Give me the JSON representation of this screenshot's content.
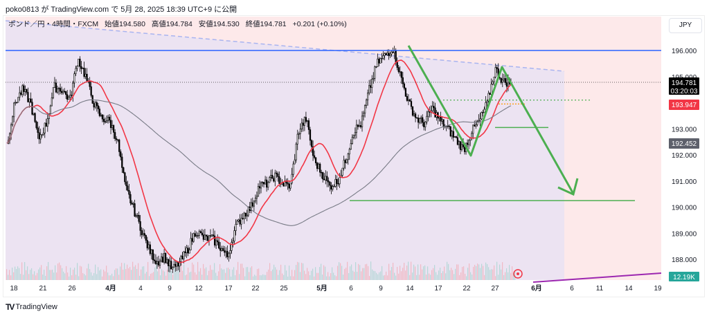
{
  "published": "poko0813 が TradingView.com で 5月 28, 2025 18:39 UTC+9 に公開",
  "legend": {
    "symbol": "ポンド／円・4時間・FXCM",
    "open": "始値194.580",
    "high": "高値194.784",
    "low": "安値194.530",
    "close": "終値194.781",
    "change": "+0.201 (+0.10%)"
  },
  "currency_button": "JPY",
  "brand": "TradingView",
  "price_labels": {
    "last": "194.781",
    "countdown": "03:20:03",
    "ma_fast": "193.947",
    "ma_slow": "192.452",
    "volume": "12.19K"
  },
  "colors": {
    "up": "#ffffff",
    "down": "#000000",
    "ma_fast": "#f23645",
    "ma_slow": "#787b86",
    "horizontal": "#2962ff",
    "drawing": "#4caf50",
    "volume_badge": "#26a69a",
    "trend": "#9c27b0"
  },
  "chart_data": {
    "type": "candlestick",
    "ylim": [
      187.2,
      197.2
    ],
    "y_ticks": [
      "196.000",
      "195.000",
      "193.000",
      "192.000",
      "191.000",
      "190.000",
      "189.000",
      "188.000"
    ],
    "x_ticks": [
      "18",
      "21",
      "26",
      "4月",
      "4",
      "9",
      "12",
      "17",
      "22",
      "25",
      "5月",
      "6",
      "9",
      "14",
      "17",
      "22",
      "27",
      "6月",
      "6",
      "11",
      "14",
      "19"
    ],
    "approx_closes": [
      192.4,
      194.0,
      194.5,
      194.0,
      192.6,
      193.2,
      194.6,
      194.5,
      194.1,
      195.7,
      195.0,
      194.0,
      193.4,
      193.3,
      192.6,
      190.8,
      190.0,
      189.2,
      188.4,
      187.9,
      188.1,
      187.6,
      187.9,
      188.4,
      189.1,
      188.8,
      188.8,
      188.5,
      188.1,
      189.2,
      189.7,
      190.0,
      190.8,
      190.9,
      191.2,
      190.9,
      190.8,
      192.9,
      193.4,
      191.8,
      191.3,
      190.8,
      191.0,
      191.8,
      192.9,
      193.2,
      194.5,
      195.5,
      195.8,
      196.1,
      195.0,
      194.0,
      193.4,
      193.2,
      193.8,
      193.3,
      193.0,
      192.6,
      192.2,
      192.9,
      193.3,
      194.0,
      195.3,
      194.8,
      194.781
    ],
    "horizontal_levels": [
      196.0,
      190.25,
      193.05
    ],
    "dotted_levels": [
      194.1,
      193.95
    ]
  }
}
